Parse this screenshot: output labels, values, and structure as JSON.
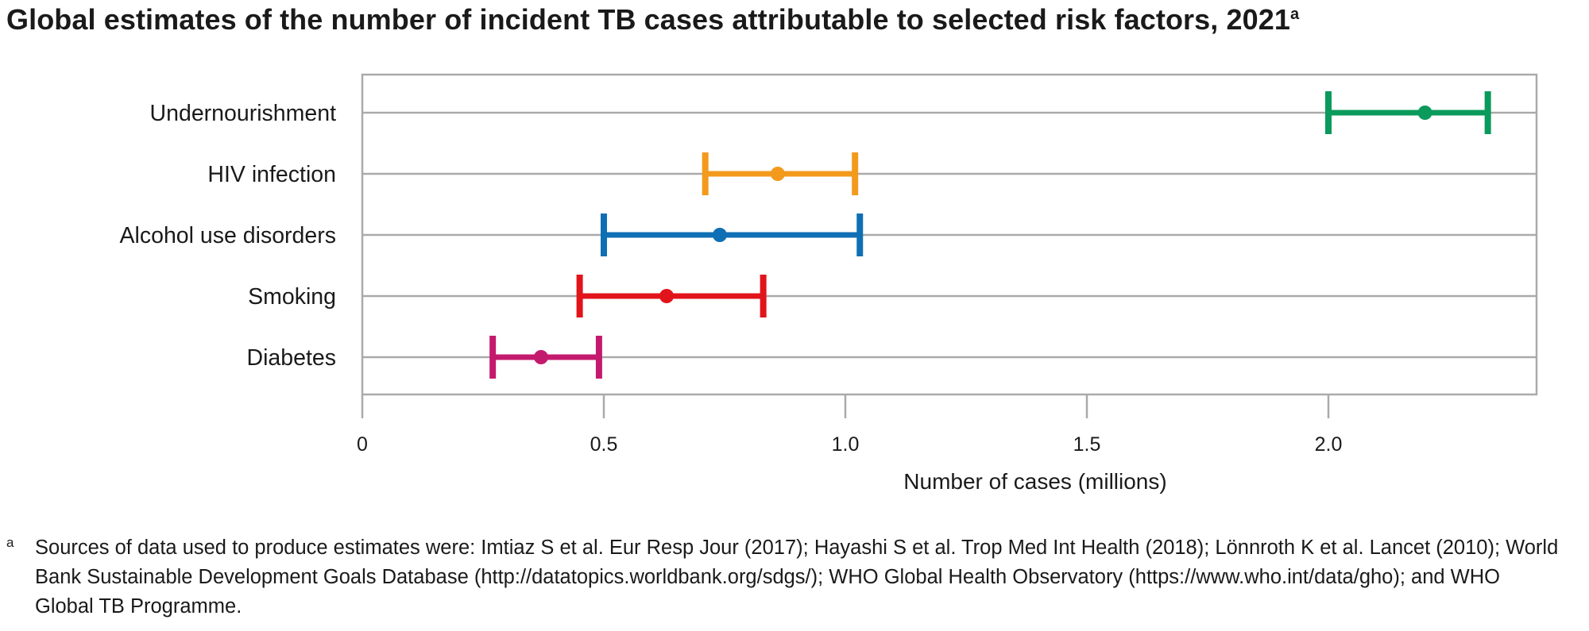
{
  "title": "Global estimates of the number of incident TB cases attributable to selected risk factors, 2021",
  "title_marker": "a",
  "chart_data": {
    "type": "errorbar",
    "orientation": "horizontal",
    "title": "Global estimates of the number of incident TB cases attributable to selected risk factors, 2021",
    "xlabel": "Number of cases (millions)",
    "ylabel": "",
    "xlim": [
      0,
      2.43
    ],
    "xticks": [
      0,
      0.5,
      1.0,
      1.5,
      2.0
    ],
    "xtick_labels": [
      "0",
      "0.5",
      "1.0",
      "1.5",
      "2.0"
    ],
    "grid": "horizontal gridlines at each category",
    "categories": [
      "Undernourishment",
      "HIV infection",
      "Alcohol use disorders",
      "Smoking",
      "Diabetes"
    ],
    "series": [
      {
        "category": "Undernourishment",
        "best": 2.2,
        "low": 2.0,
        "high": 2.33,
        "color": "#0a9a5c"
      },
      {
        "category": "HIV infection",
        "best": 0.86,
        "low": 0.71,
        "high": 1.02,
        "color": "#f39a1d"
      },
      {
        "category": "Alcohol use disorders",
        "best": 0.74,
        "low": 0.5,
        "high": 1.03,
        "color": "#0f6fb4"
      },
      {
        "category": "Smoking",
        "best": 0.63,
        "low": 0.45,
        "high": 0.83,
        "color": "#e1141b"
      },
      {
        "category": "Diabetes",
        "best": 0.37,
        "low": 0.27,
        "high": 0.49,
        "color": "#c41a6e"
      }
    ]
  },
  "footnote": {
    "marker": "a",
    "text": "Sources of data used to produce estimates were: Imtiaz S et al. Eur Resp Jour (2017); Hayashi S et al. Trop Med Int Health (2018); Lönnroth K et al. Lancet (2010); World Bank Sustainable Development Goals Database (http://datatopics.worldbank.org/sdgs/); WHO Global Health Observatory (https://www.who.int/data/gho); and WHO Global TB Programme."
  }
}
